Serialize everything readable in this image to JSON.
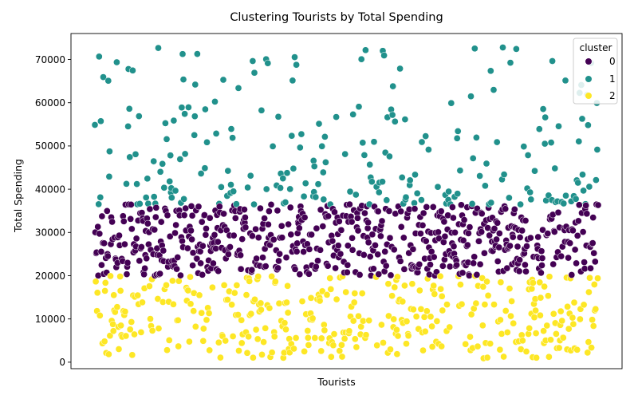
{
  "chart_data": {
    "type": "scatter",
    "title": "Clustering Tourists by Total Spending",
    "xlabel": "Tourists",
    "ylabel": "Total Spending",
    "ylim": [
      -1500,
      76000
    ],
    "x_tick_labels": "none",
    "yticks": [
      "0",
      "10000",
      "20000",
      "30000",
      "40000",
      "50000",
      "60000",
      "70000"
    ],
    "ytick_values": [
      0,
      10000,
      20000,
      30000,
      40000,
      50000,
      60000,
      70000
    ],
    "grid": false,
    "legend": {
      "title": "cluster",
      "placement": "top-right",
      "entries": [
        {
          "label": "0",
          "color": "#440154"
        },
        {
          "label": "1",
          "color": "#21918c"
        },
        {
          "label": "2",
          "color": "#fde725"
        }
      ]
    },
    "series": [
      {
        "name": "0",
        "color": "#440154",
        "point_count": 600,
        "y_range": [
          20000,
          36500
        ],
        "sample_y": [
          23200,
          33000,
          27400,
          25100,
          30900,
          21600,
          35200,
          28300,
          24400,
          31800
        ]
      },
      {
        "name": "1",
        "color": "#21918c",
        "point_count": 230,
        "y_range": [
          36500,
          73500
        ],
        "sample_y": [
          40100,
          46500,
          65900,
          70100,
          60600,
          43800,
          38100,
          55400,
          49900,
          73300
        ]
      },
      {
        "name": "2",
        "color": "#fde725",
        "point_count": 370,
        "y_range": [
          800,
          20000
        ],
        "sample_y": [
          18400,
          9000,
          13300,
          1300,
          15800,
          7800,
          17600,
          11200,
          4200,
          19400
        ]
      }
    ]
  }
}
